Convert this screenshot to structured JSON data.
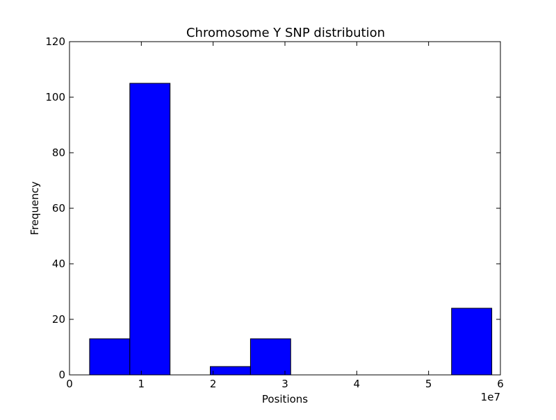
{
  "chart_data": {
    "type": "bar",
    "title": "Chromosome Y SNP distribution",
    "xlabel": "Positions",
    "ylabel": "Frequency",
    "x_offset_label": "1e7",
    "xlim": [
      0,
      6
    ],
    "ylim": [
      0,
      120
    ],
    "xticks": [
      0,
      1,
      2,
      3,
      4,
      5,
      6
    ],
    "yticks": [
      0,
      20,
      40,
      60,
      80,
      100,
      120
    ],
    "x_unit_scale": "1e7",
    "bins": [
      {
        "x0": 0.28,
        "x1": 0.84,
        "value": 13
      },
      {
        "x0": 0.84,
        "x1": 1.4,
        "value": 105
      },
      {
        "x0": 1.4,
        "x1": 1.96,
        "value": 0
      },
      {
        "x0": 1.96,
        "x1": 2.52,
        "value": 3
      },
      {
        "x0": 2.52,
        "x1": 3.08,
        "value": 13
      },
      {
        "x0": 3.08,
        "x1": 3.64,
        "value": 0
      },
      {
        "x0": 3.64,
        "x1": 4.2,
        "value": 0
      },
      {
        "x0": 4.2,
        "x1": 4.76,
        "value": 0
      },
      {
        "x0": 4.76,
        "x1": 5.32,
        "value": 0
      },
      {
        "x0": 5.32,
        "x1": 5.88,
        "value": 24
      }
    ],
    "bar_color": "#0000ff",
    "bar_edge_color": "#000000",
    "grid": false,
    "legend": "none"
  }
}
